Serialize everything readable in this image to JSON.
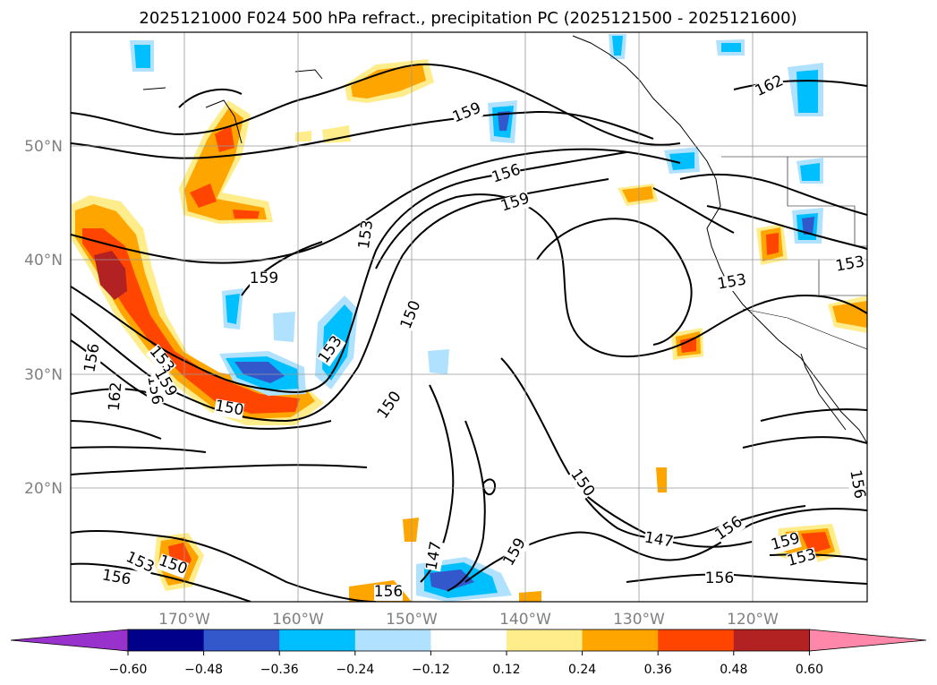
{
  "title": "2025121000 F024 500 hPa refract., precipitation PC (2025121500 - 2025121600)",
  "lat_labels": [
    "50°N",
    "40°N",
    "30°N",
    "20°N"
  ],
  "lon_labels": [
    "170°W",
    "160°W",
    "150°W",
    "140°W",
    "130°W",
    "120°W"
  ],
  "colorbar": {
    "colors": [
      "#9932cc",
      "#00008b",
      "#3358cc",
      "#00bfff",
      "#b0e2ff",
      "#ffffff",
      "#ffec8b",
      "#ffa500",
      "#ff4500",
      "#b22222",
      "#ff88aa"
    ],
    "tick_labels": [
      "−0.60",
      "−0.48",
      "−0.36",
      "−0.24",
      "−0.12",
      "0.12",
      "0.24",
      "0.36",
      "0.48",
      "0.60"
    ]
  },
  "contour_labels": [
    {
      "text": "159"
    },
    {
      "text": "162"
    },
    {
      "text": "156"
    },
    {
      "text": "159"
    },
    {
      "text": "153"
    },
    {
      "text": "159"
    },
    {
      "text": "153"
    },
    {
      "text": "153"
    },
    {
      "text": "150"
    },
    {
      "text": "153"
    },
    {
      "text": "156"
    },
    {
      "text": "162"
    },
    {
      "text": "153"
    },
    {
      "text": "156"
    },
    {
      "text": "159"
    },
    {
      "text": "150"
    },
    {
      "text": "150"
    },
    {
      "text": "150"
    },
    {
      "text": "147"
    },
    {
      "text": "147"
    },
    {
      "text": "156"
    },
    {
      "text": "159"
    },
    {
      "text": "153"
    },
    {
      "text": "156"
    },
    {
      "text": "156"
    },
    {
      "text": "153"
    },
    {
      "text": "150"
    },
    {
      "text": "156"
    },
    {
      "text": "159"
    },
    {
      "text": "156"
    }
  ]
}
